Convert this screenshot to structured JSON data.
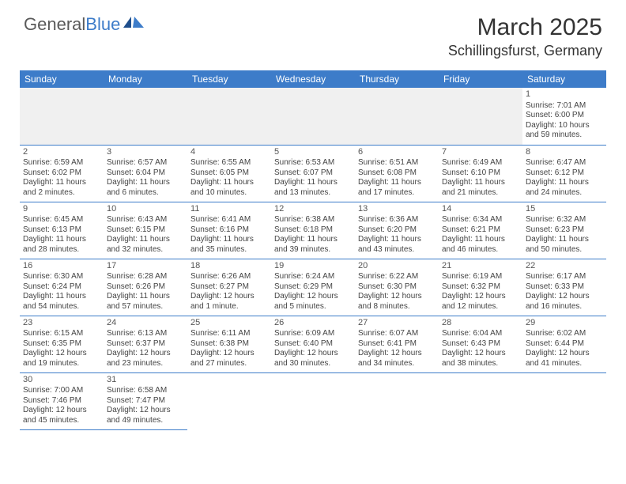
{
  "logo": {
    "general": "General",
    "blue": "Blue"
  },
  "header": {
    "title": "March 2025",
    "location": "Schillingsfurst, Germany"
  },
  "dayNames": [
    "Sunday",
    "Monday",
    "Tuesday",
    "Wednesday",
    "Thursday",
    "Friday",
    "Saturday"
  ],
  "colors": {
    "headerBar": "#3d7cc9",
    "emptyLead": "#f0f0f0",
    "text": "#333333",
    "background": "#ffffff"
  },
  "grid": {
    "leadingEmpty": 6,
    "trailingEmpty": 5,
    "rows": 6,
    "cols": 7
  },
  "days": [
    {
      "n": "1",
      "sunrise": "Sunrise: 7:01 AM",
      "sunset": "Sunset: 6:00 PM",
      "daylight": "Daylight: 10 hours and 59 minutes."
    },
    {
      "n": "2",
      "sunrise": "Sunrise: 6:59 AM",
      "sunset": "Sunset: 6:02 PM",
      "daylight": "Daylight: 11 hours and 2 minutes."
    },
    {
      "n": "3",
      "sunrise": "Sunrise: 6:57 AM",
      "sunset": "Sunset: 6:04 PM",
      "daylight": "Daylight: 11 hours and 6 minutes."
    },
    {
      "n": "4",
      "sunrise": "Sunrise: 6:55 AM",
      "sunset": "Sunset: 6:05 PM",
      "daylight": "Daylight: 11 hours and 10 minutes."
    },
    {
      "n": "5",
      "sunrise": "Sunrise: 6:53 AM",
      "sunset": "Sunset: 6:07 PM",
      "daylight": "Daylight: 11 hours and 13 minutes."
    },
    {
      "n": "6",
      "sunrise": "Sunrise: 6:51 AM",
      "sunset": "Sunset: 6:08 PM",
      "daylight": "Daylight: 11 hours and 17 minutes."
    },
    {
      "n": "7",
      "sunrise": "Sunrise: 6:49 AM",
      "sunset": "Sunset: 6:10 PM",
      "daylight": "Daylight: 11 hours and 21 minutes."
    },
    {
      "n": "8",
      "sunrise": "Sunrise: 6:47 AM",
      "sunset": "Sunset: 6:12 PM",
      "daylight": "Daylight: 11 hours and 24 minutes."
    },
    {
      "n": "9",
      "sunrise": "Sunrise: 6:45 AM",
      "sunset": "Sunset: 6:13 PM",
      "daylight": "Daylight: 11 hours and 28 minutes."
    },
    {
      "n": "10",
      "sunrise": "Sunrise: 6:43 AM",
      "sunset": "Sunset: 6:15 PM",
      "daylight": "Daylight: 11 hours and 32 minutes."
    },
    {
      "n": "11",
      "sunrise": "Sunrise: 6:41 AM",
      "sunset": "Sunset: 6:16 PM",
      "daylight": "Daylight: 11 hours and 35 minutes."
    },
    {
      "n": "12",
      "sunrise": "Sunrise: 6:38 AM",
      "sunset": "Sunset: 6:18 PM",
      "daylight": "Daylight: 11 hours and 39 minutes."
    },
    {
      "n": "13",
      "sunrise": "Sunrise: 6:36 AM",
      "sunset": "Sunset: 6:20 PM",
      "daylight": "Daylight: 11 hours and 43 minutes."
    },
    {
      "n": "14",
      "sunrise": "Sunrise: 6:34 AM",
      "sunset": "Sunset: 6:21 PM",
      "daylight": "Daylight: 11 hours and 46 minutes."
    },
    {
      "n": "15",
      "sunrise": "Sunrise: 6:32 AM",
      "sunset": "Sunset: 6:23 PM",
      "daylight": "Daylight: 11 hours and 50 minutes."
    },
    {
      "n": "16",
      "sunrise": "Sunrise: 6:30 AM",
      "sunset": "Sunset: 6:24 PM",
      "daylight": "Daylight: 11 hours and 54 minutes."
    },
    {
      "n": "17",
      "sunrise": "Sunrise: 6:28 AM",
      "sunset": "Sunset: 6:26 PM",
      "daylight": "Daylight: 11 hours and 57 minutes."
    },
    {
      "n": "18",
      "sunrise": "Sunrise: 6:26 AM",
      "sunset": "Sunset: 6:27 PM",
      "daylight": "Daylight: 12 hours and 1 minute."
    },
    {
      "n": "19",
      "sunrise": "Sunrise: 6:24 AM",
      "sunset": "Sunset: 6:29 PM",
      "daylight": "Daylight: 12 hours and 5 minutes."
    },
    {
      "n": "20",
      "sunrise": "Sunrise: 6:22 AM",
      "sunset": "Sunset: 6:30 PM",
      "daylight": "Daylight: 12 hours and 8 minutes."
    },
    {
      "n": "21",
      "sunrise": "Sunrise: 6:19 AM",
      "sunset": "Sunset: 6:32 PM",
      "daylight": "Daylight: 12 hours and 12 minutes."
    },
    {
      "n": "22",
      "sunrise": "Sunrise: 6:17 AM",
      "sunset": "Sunset: 6:33 PM",
      "daylight": "Daylight: 12 hours and 16 minutes."
    },
    {
      "n": "23",
      "sunrise": "Sunrise: 6:15 AM",
      "sunset": "Sunset: 6:35 PM",
      "daylight": "Daylight: 12 hours and 19 minutes."
    },
    {
      "n": "24",
      "sunrise": "Sunrise: 6:13 AM",
      "sunset": "Sunset: 6:37 PM",
      "daylight": "Daylight: 12 hours and 23 minutes."
    },
    {
      "n": "25",
      "sunrise": "Sunrise: 6:11 AM",
      "sunset": "Sunset: 6:38 PM",
      "daylight": "Daylight: 12 hours and 27 minutes."
    },
    {
      "n": "26",
      "sunrise": "Sunrise: 6:09 AM",
      "sunset": "Sunset: 6:40 PM",
      "daylight": "Daylight: 12 hours and 30 minutes."
    },
    {
      "n": "27",
      "sunrise": "Sunrise: 6:07 AM",
      "sunset": "Sunset: 6:41 PM",
      "daylight": "Daylight: 12 hours and 34 minutes."
    },
    {
      "n": "28",
      "sunrise": "Sunrise: 6:04 AM",
      "sunset": "Sunset: 6:43 PM",
      "daylight": "Daylight: 12 hours and 38 minutes."
    },
    {
      "n": "29",
      "sunrise": "Sunrise: 6:02 AM",
      "sunset": "Sunset: 6:44 PM",
      "daylight": "Daylight: 12 hours and 41 minutes."
    },
    {
      "n": "30",
      "sunrise": "Sunrise: 7:00 AM",
      "sunset": "Sunset: 7:46 PM",
      "daylight": "Daylight: 12 hours and 45 minutes."
    },
    {
      "n": "31",
      "sunrise": "Sunrise: 6:58 AM",
      "sunset": "Sunset: 7:47 PM",
      "daylight": "Daylight: 12 hours and 49 minutes."
    }
  ]
}
